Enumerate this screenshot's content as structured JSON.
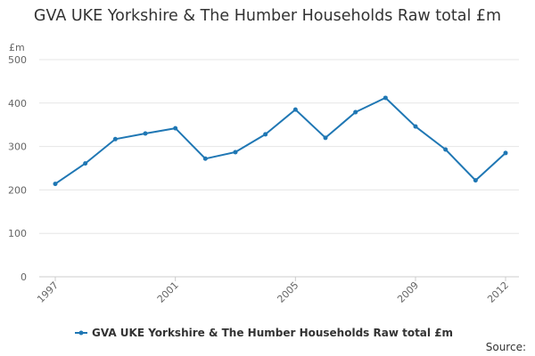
{
  "chart_data": {
    "type": "line",
    "title": "GVA UKE Yorkshire & The Humber Households Raw total £m",
    "ylabel": "£m",
    "xlabel": "",
    "ylim": [
      0,
      500
    ],
    "yticks": [
      0,
      100,
      200,
      300,
      400,
      500
    ],
    "xtick_labels": [
      "1997",
      "2001",
      "2005",
      "2009",
      "2012"
    ],
    "grid": true,
    "legend": "bottom",
    "x": [
      1997,
      1998,
      1999,
      2000,
      2001,
      2002,
      2003,
      2004,
      2005,
      2006,
      2007,
      2008,
      2009,
      2010,
      2011,
      2012
    ],
    "series": [
      {
        "name": "GVA UKE Yorkshire & The Humber Households Raw total £m",
        "color": "#1f77b4",
        "values": [
          214,
          261,
          317,
          330,
          342,
          272,
          287,
          328,
          385,
          320,
          379,
          412,
          346,
          293,
          222,
          285
        ]
      }
    ],
    "source_label": "Source:"
  }
}
